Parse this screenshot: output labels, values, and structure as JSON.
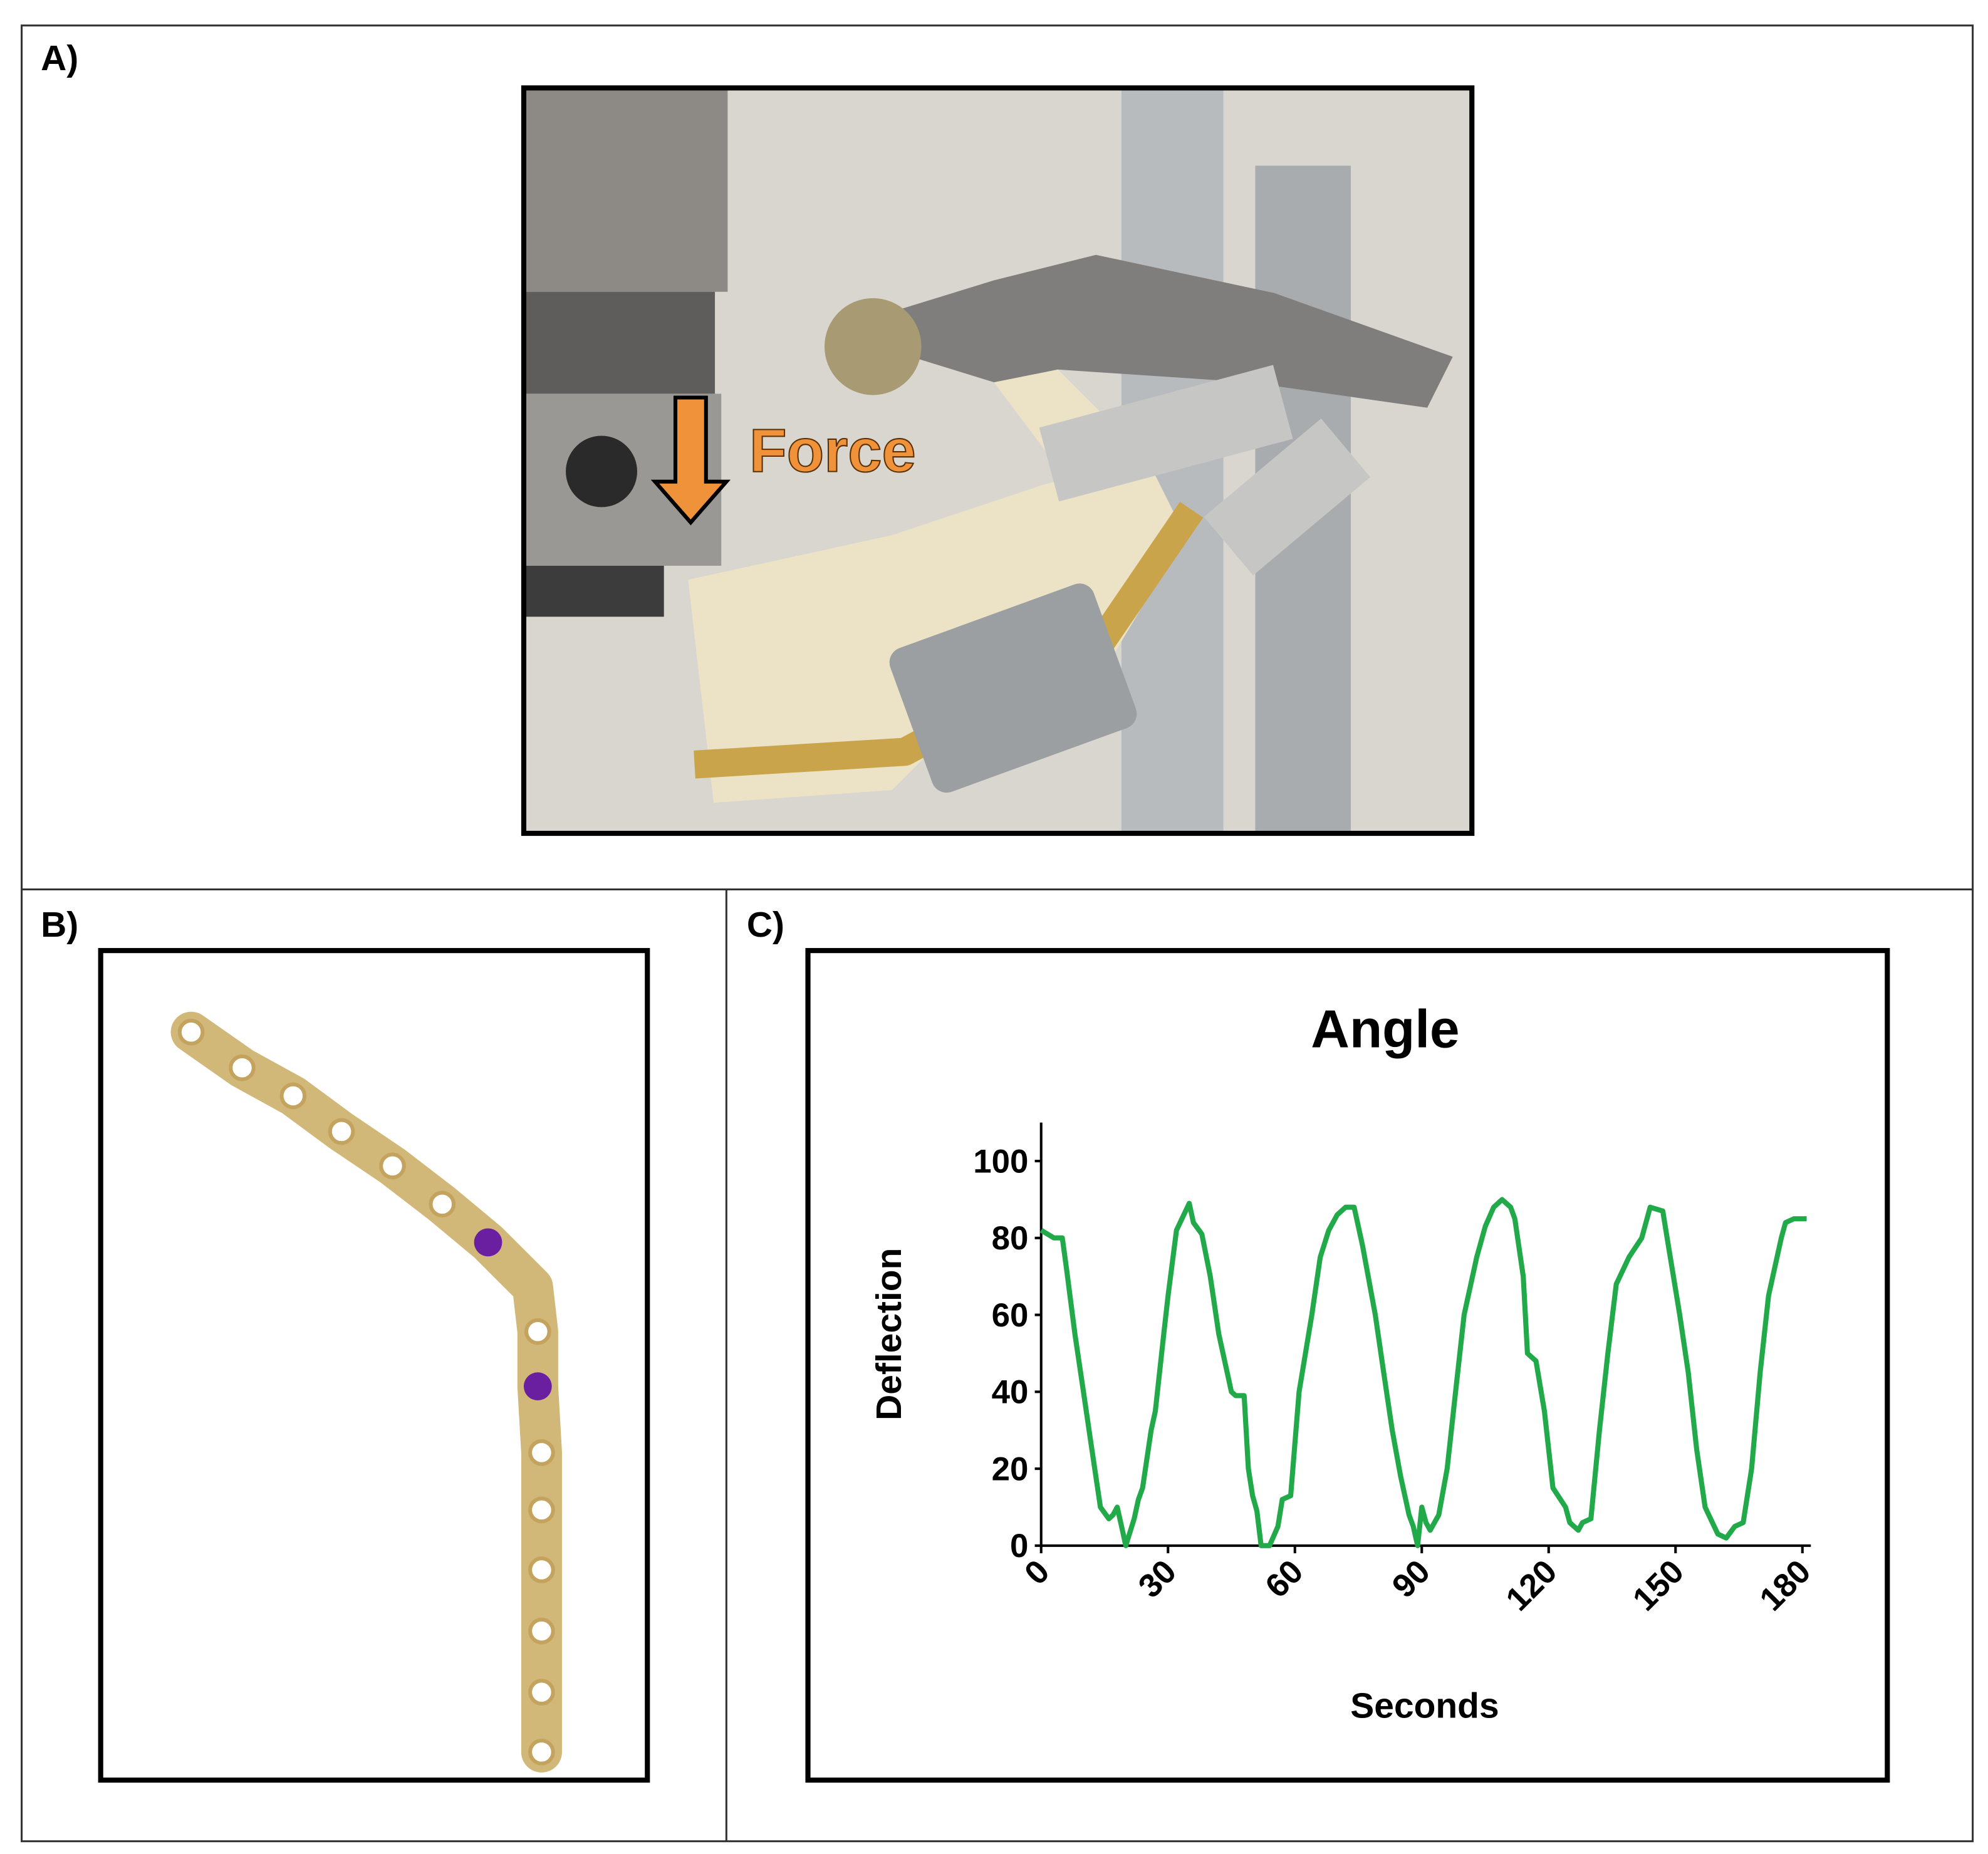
{
  "panels": {
    "a": "A)",
    "b": "B)",
    "c": "C)"
  },
  "photo_annotation": "Force",
  "chart_data": {
    "type": "line",
    "title": "Angle",
    "x_label": "Seconds",
    "y_label": "Deflection",
    "color": "#22a94a",
    "x": [
      0,
      1.5,
      3,
      5,
      6,
      8,
      10,
      12,
      14,
      16,
      17,
      18,
      19,
      20,
      22,
      23,
      24,
      26,
      27,
      29,
      30,
      32,
      35,
      36,
      38,
      40,
      42,
      45,
      46,
      48,
      49,
      50,
      51,
      52,
      54,
      56,
      57,
      59,
      61,
      64,
      66,
      68,
      70,
      72,
      74,
      76,
      79,
      81,
      83,
      85,
      87,
      88,
      89,
      90,
      91,
      92,
      94,
      96,
      98,
      100,
      103,
      105,
      107,
      109,
      111,
      112,
      114,
      115,
      117,
      119,
      121,
      124,
      125,
      127,
      128,
      130,
      132,
      134,
      136,
      139,
      142,
      144,
      147,
      148,
      151,
      153,
      155,
      157,
      160,
      162,
      164,
      166,
      168,
      170,
      172,
      175,
      176,
      178,
      181
    ],
    "values": [
      82,
      81,
      80,
      80,
      72,
      55,
      40,
      25,
      10,
      7,
      8,
      10,
      5,
      0,
      7,
      12,
      15,
      30,
      35,
      55,
      65,
      82,
      89,
      84,
      81,
      70,
      55,
      40,
      39,
      39,
      20,
      13,
      9,
      0,
      0,
      5,
      12,
      13,
      40,
      60,
      75,
      82,
      86,
      88,
      88,
      78,
      60,
      45,
      30,
      18,
      8,
      5,
      0,
      10,
      6,
      4,
      8,
      20,
      40,
      60,
      75,
      83,
      88,
      90,
      88,
      85,
      70,
      50,
      48,
      35,
      15,
      10,
      6,
      4,
      6,
      7,
      30,
      50,
      68,
      75,
      80,
      88,
      87,
      80,
      60,
      45,
      25,
      10,
      3,
      2,
      5,
      6,
      20,
      45,
      65,
      80,
      84,
      85,
      85
    ],
    "xlim": [
      0,
      182
    ],
    "xticks": [
      0,
      30,
      60,
      90,
      120,
      150,
      180
    ],
    "ylim": [
      0,
      110
    ],
    "yticks": [
      0,
      20,
      40,
      60,
      80,
      100
    ],
    "grid": false
  }
}
